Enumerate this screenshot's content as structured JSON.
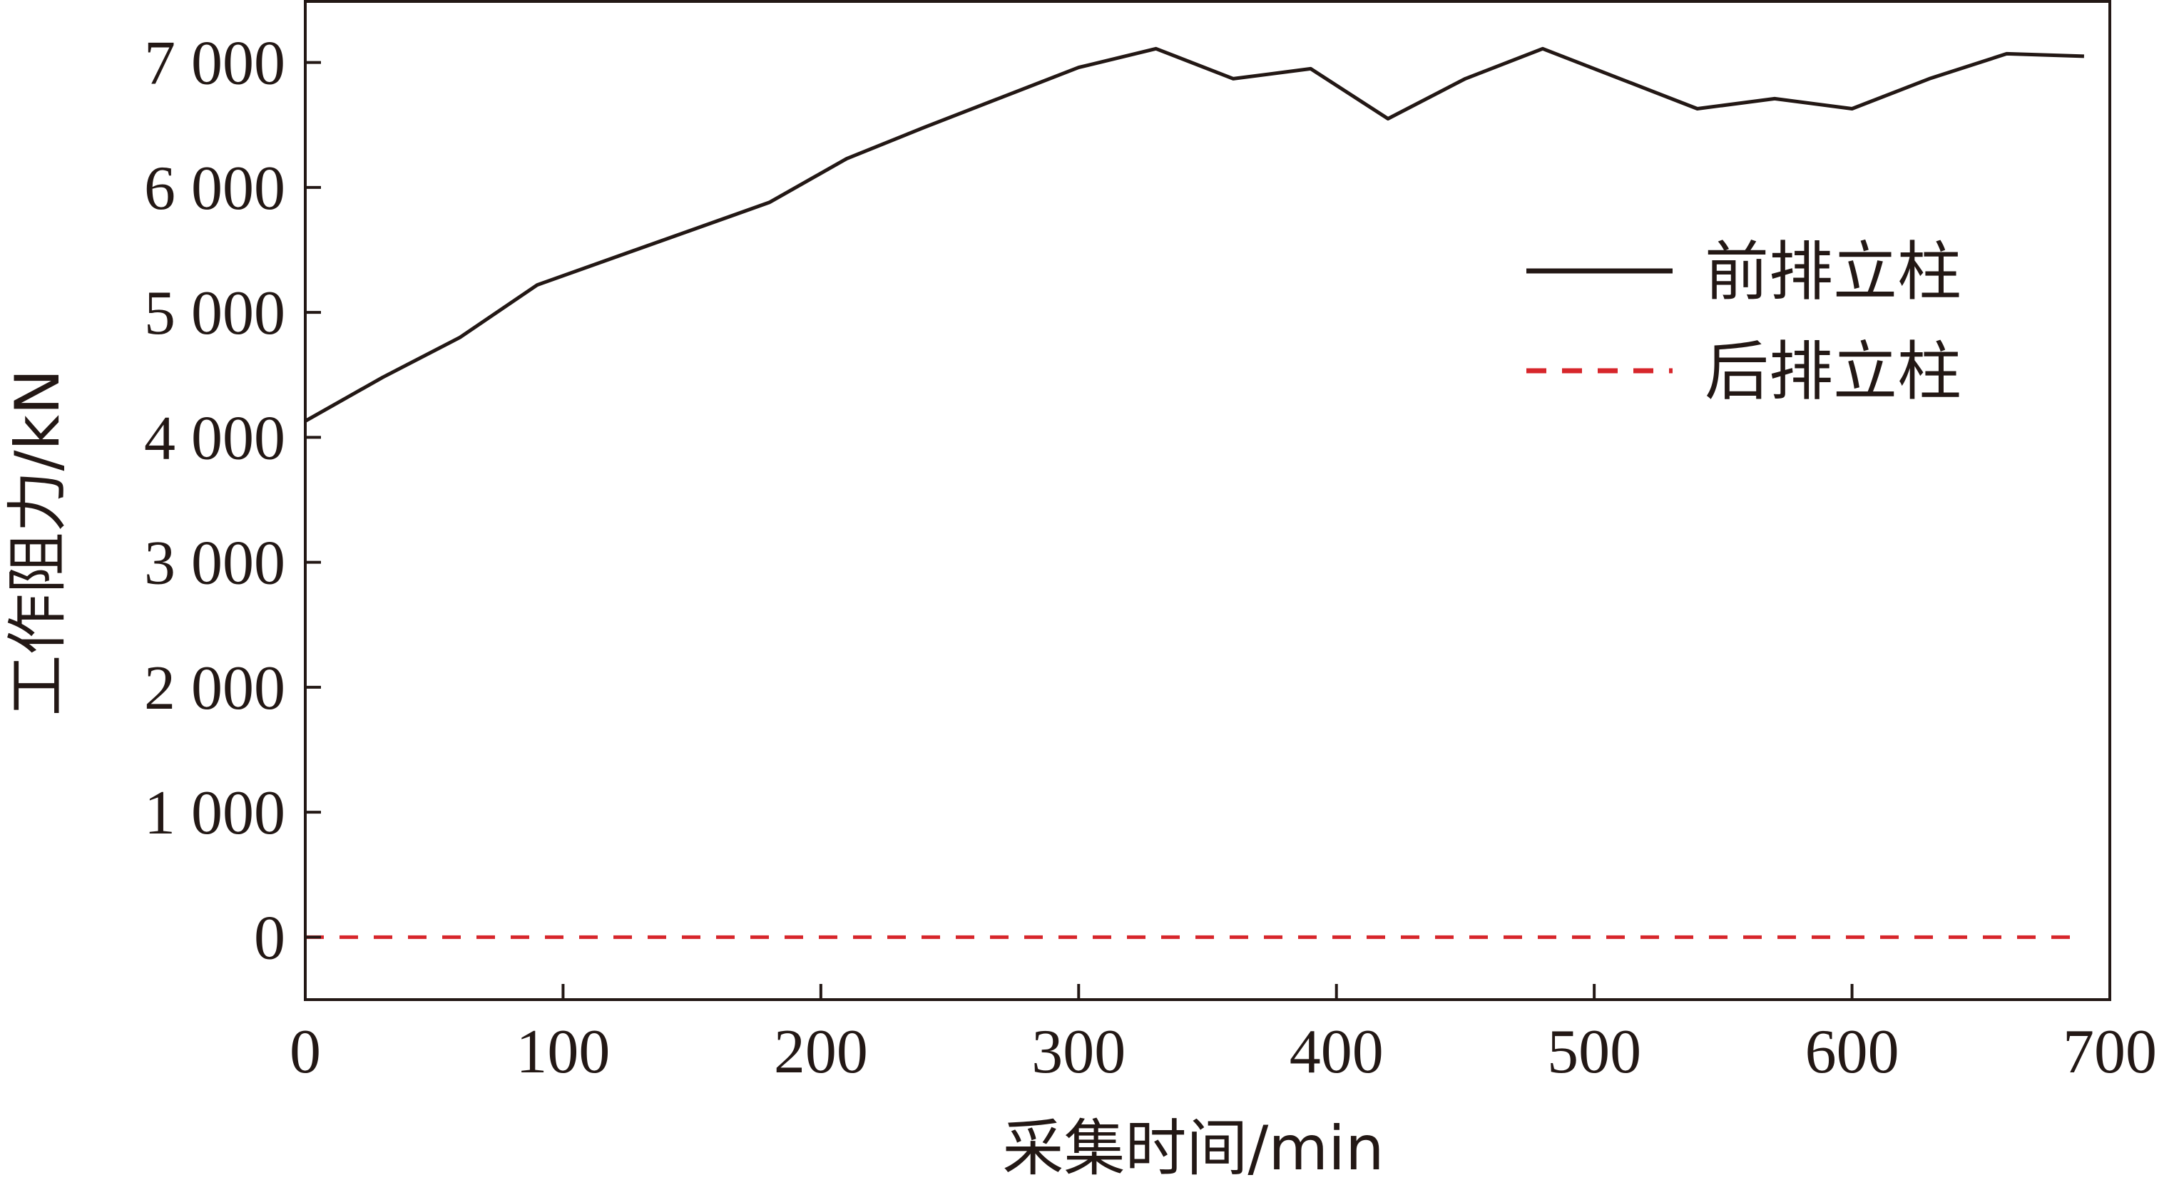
{
  "chart_data": {
    "type": "line",
    "title": "",
    "xlabel": "采集时间/min",
    "ylabel": "工作阻力/kN",
    "xlim": [
      0,
      700
    ],
    "ylim": [
      -500,
      7500
    ],
    "x_ticks": [
      0,
      100,
      200,
      300,
      400,
      500,
      600,
      700
    ],
    "x_tick_labels": [
      "0",
      "100",
      "200",
      "300",
      "400",
      "500",
      "600",
      "700"
    ],
    "y_ticks": [
      0,
      1000,
      2000,
      3000,
      4000,
      5000,
      6000,
      7000
    ],
    "y_tick_labels": [
      "0",
      "1 000",
      "2 000",
      "3 000",
      "4 000",
      "5 000",
      "6 000",
      "7 000"
    ],
    "grid": false,
    "legend_position": "top-right",
    "series": [
      {
        "name": "前排立柱",
        "color": "#231815",
        "style": "solid",
        "x": [
          0,
          30,
          60,
          90,
          120,
          150,
          180,
          210,
          240,
          270,
          300,
          330,
          360,
          390,
          420,
          450,
          480,
          510,
          540,
          570,
          600,
          630,
          660,
          690
        ],
        "y": [
          4130,
          4480,
          4800,
          5220,
          5440,
          5660,
          5880,
          6230,
          6480,
          6720,
          6960,
          7110,
          6870,
          6950,
          6550,
          6870,
          7110,
          6870,
          6630,
          6710,
          6630,
          6870,
          7070,
          7050
        ]
      },
      {
        "name": "后排立柱",
        "color": "#d7262b",
        "style": "dashed",
        "x": [
          0,
          690
        ],
        "y": [
          0,
          0
        ]
      }
    ]
  }
}
